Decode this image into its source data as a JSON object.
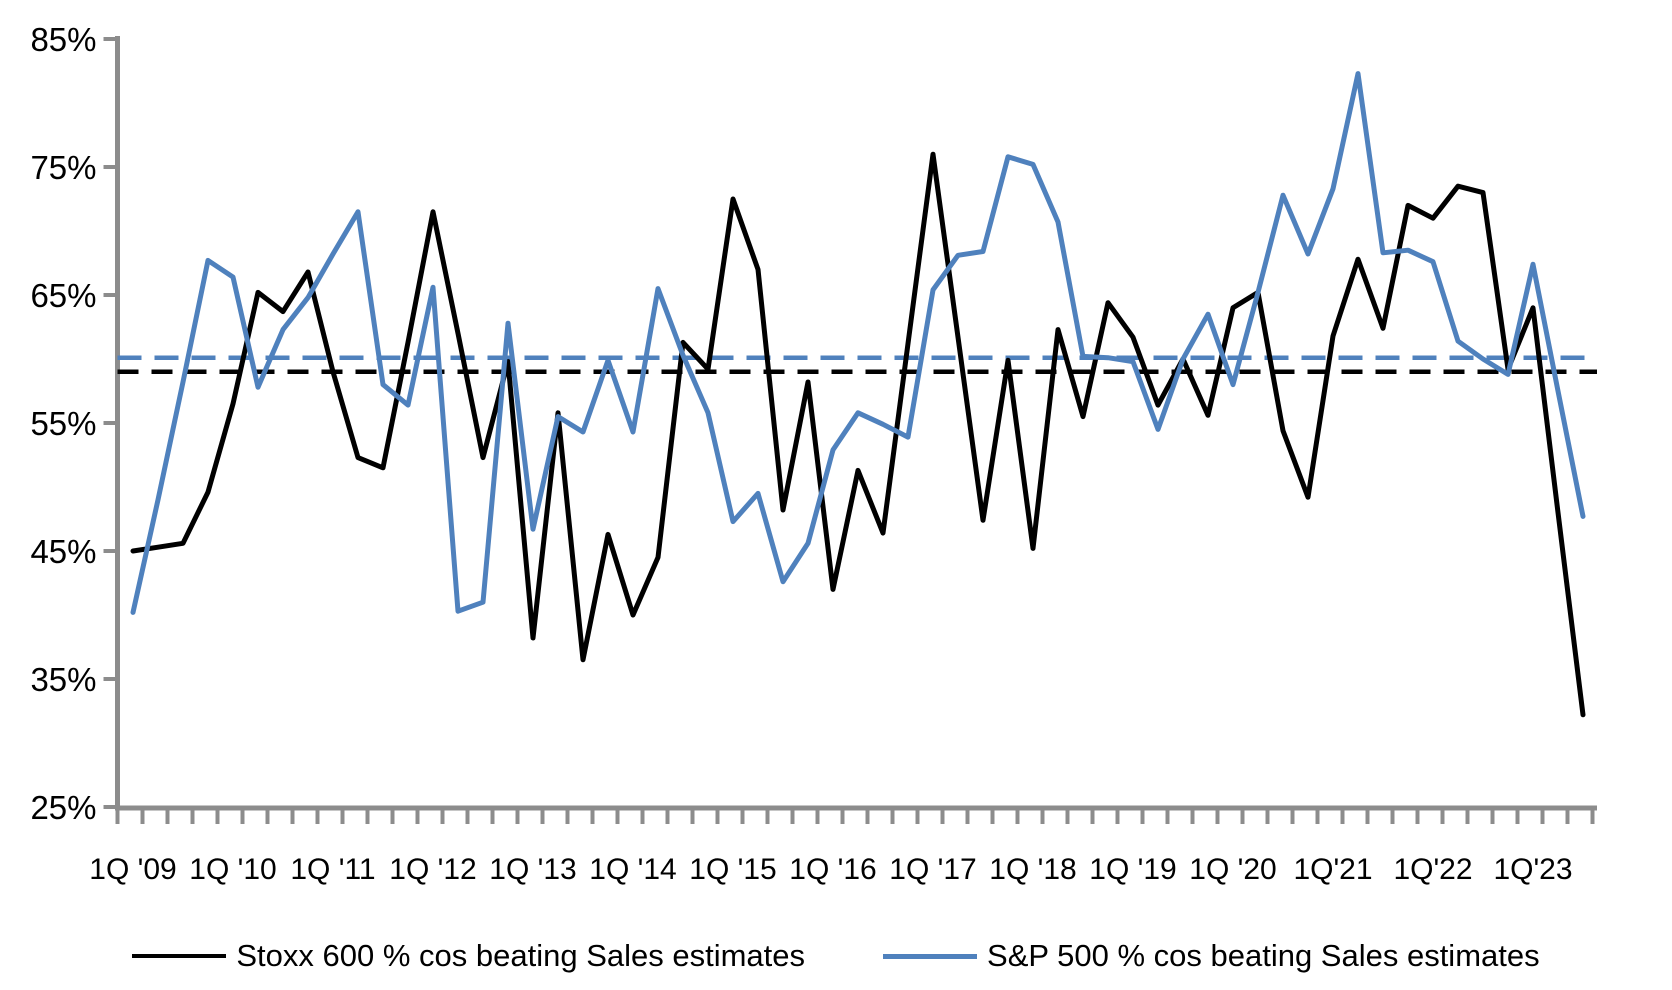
{
  "chart_data": {
    "type": "line",
    "title": "",
    "xlabel": "",
    "ylabel": "",
    "ylim": [
      25,
      85
    ],
    "y_tick_labels": [
      "85%",
      "75%",
      "65%",
      "55%",
      "45%",
      "35%",
      "25%"
    ],
    "y_tick_values": [
      85,
      75,
      65,
      55,
      45,
      35,
      25
    ],
    "grid": "off",
    "legend_position": "bottom",
    "x_tick_labels": [
      "1Q '09",
      "1Q '10",
      "1Q '11",
      "1Q '12",
      "1Q '13",
      "1Q '14",
      "1Q '15",
      "1Q '16",
      "1Q '17",
      "1Q '18",
      "1Q '19",
      "1Q '20",
      "1Q'21",
      "1Q'22",
      "1Q'23"
    ],
    "x_tick_every_n_quarters": 4,
    "categories": [
      "1Q '09",
      "2Q '09",
      "3Q '09",
      "4Q '09",
      "1Q '10",
      "2Q '10",
      "3Q '10",
      "4Q '10",
      "1Q '11",
      "2Q '11",
      "3Q '11",
      "4Q '11",
      "1Q '12",
      "2Q '12",
      "3Q '12",
      "4Q '12",
      "1Q '13",
      "2Q '13",
      "3Q '13",
      "4Q '13",
      "1Q '14",
      "2Q '14",
      "3Q '14",
      "4Q '14",
      "1Q '15",
      "2Q '15",
      "3Q '15",
      "4Q '15",
      "1Q '16",
      "2Q '16",
      "3Q '16",
      "4Q '16",
      "1Q '17",
      "2Q '17",
      "3Q '17",
      "4Q '17",
      "1Q '18",
      "2Q '18",
      "3Q '18",
      "4Q '18",
      "1Q '19",
      "2Q '19",
      "3Q '19",
      "4Q '19",
      "1Q '20",
      "2Q '20",
      "3Q '20",
      "4Q '20",
      "1Q'21",
      "2Q'21",
      "3Q'21",
      "4Q'21",
      "1Q'22",
      "2Q'22",
      "3Q'22",
      "4Q'22",
      "1Q'23",
      "2Q'23",
      "3Q'23"
    ],
    "series": [
      {
        "name": "Stoxx 600 % cos beating Sales estimates",
        "color": "#000000",
        "dashed_average_line": 59.0,
        "values": [
          45.0,
          45.3,
          45.6,
          49.6,
          56.5,
          65.2,
          63.7,
          66.8,
          59.0,
          52.3,
          51.5,
          61.3,
          71.5,
          62.0,
          52.3,
          59.8,
          38.2,
          55.8,
          36.5,
          46.3,
          40.0,
          44.5,
          61.3,
          59.2,
          72.5,
          67.0,
          48.2,
          58.2,
          42.0,
          51.3,
          46.4,
          61.2,
          76.0,
          61.7,
          47.4,
          59.9,
          45.2,
          62.3,
          55.5,
          64.4,
          61.7,
          56.4,
          60.0,
          55.6,
          64.0,
          65.2,
          54.4,
          49.2,
          61.8,
          67.8,
          62.4,
          72.0,
          71.0,
          73.5,
          73.0,
          59.2,
          64.0,
          48.0,
          32.2
        ]
      },
      {
        "name": "S&P 500 % cos beating Sales estimates",
        "color": "#4F81BD",
        "dashed_average_line": 60.1,
        "values": [
          40.2,
          49.0,
          58.2,
          67.7,
          66.4,
          57.8,
          62.3,
          64.8,
          68.2,
          71.5,
          58.0,
          56.4,
          65.6,
          40.3,
          41.0,
          62.8,
          46.7,
          55.5,
          54.3,
          59.9,
          54.3,
          65.5,
          60.3,
          55.8,
          47.3,
          49.5,
          42.6,
          45.6,
          52.9,
          55.8,
          54.9,
          53.9,
          65.4,
          68.1,
          68.4,
          75.8,
          75.2,
          70.7,
          60.2,
          60.1,
          59.8,
          54.5,
          60.0,
          63.5,
          58.0,
          65.2,
          72.8,
          68.2,
          73.3,
          82.3,
          68.3,
          68.5,
          67.6,
          61.4,
          60.0,
          58.8,
          67.4,
          57.5,
          47.7
        ]
      }
    ]
  },
  "legend": {
    "stoxx_label": "Stoxx 600 % cos beating Sales estimates",
    "sp_label": "S&P 500 % cos beating Sales estimates"
  }
}
